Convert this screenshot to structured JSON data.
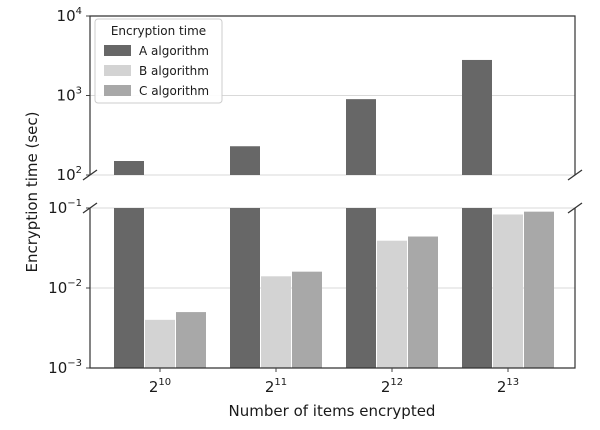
{
  "chart_data": {
    "type": "bar",
    "title": "",
    "xlabel": "Number of items encrypted",
    "ylabel": "Encryption time (sec)",
    "yscale": "log",
    "broken_axis": true,
    "grid": "horizontal",
    "categories": [
      {
        "base": "2",
        "exp": "10"
      },
      {
        "base": "2",
        "exp": "11"
      },
      {
        "base": "2",
        "exp": "12"
      },
      {
        "base": "2",
        "exp": "13"
      }
    ],
    "series": [
      {
        "name": "A algorithm",
        "color": "#676767",
        "values": [
          150,
          230,
          900,
          2800
        ]
      },
      {
        "name": "B algorithm",
        "color": "#d3d3d3",
        "values": [
          0.004,
          0.014,
          0.039,
          0.083
        ]
      },
      {
        "name": "C algorithm",
        "color": "#a8a8a8",
        "values": [
          0.005,
          0.016,
          0.044,
          0.09
        ]
      }
    ],
    "upper_panel": {
      "ylim": [
        100,
        10000
      ],
      "ticks": [
        {
          "value": 100,
          "base": "10",
          "exp": "2"
        },
        {
          "value": 1000,
          "base": "10",
          "exp": "3"
        },
        {
          "value": 10000,
          "base": "10",
          "exp": "4"
        }
      ]
    },
    "lower_panel": {
      "ylim": [
        0.001,
        0.1
      ],
      "ticks": [
        {
          "value": 0.001,
          "base": "10",
          "exp": "−3"
        },
        {
          "value": 0.01,
          "base": "10",
          "exp": "−2"
        },
        {
          "value": 0.1,
          "base": "10",
          "exp": "−1"
        }
      ]
    },
    "legend": {
      "title": "Encryption time",
      "position": "top-left"
    }
  }
}
